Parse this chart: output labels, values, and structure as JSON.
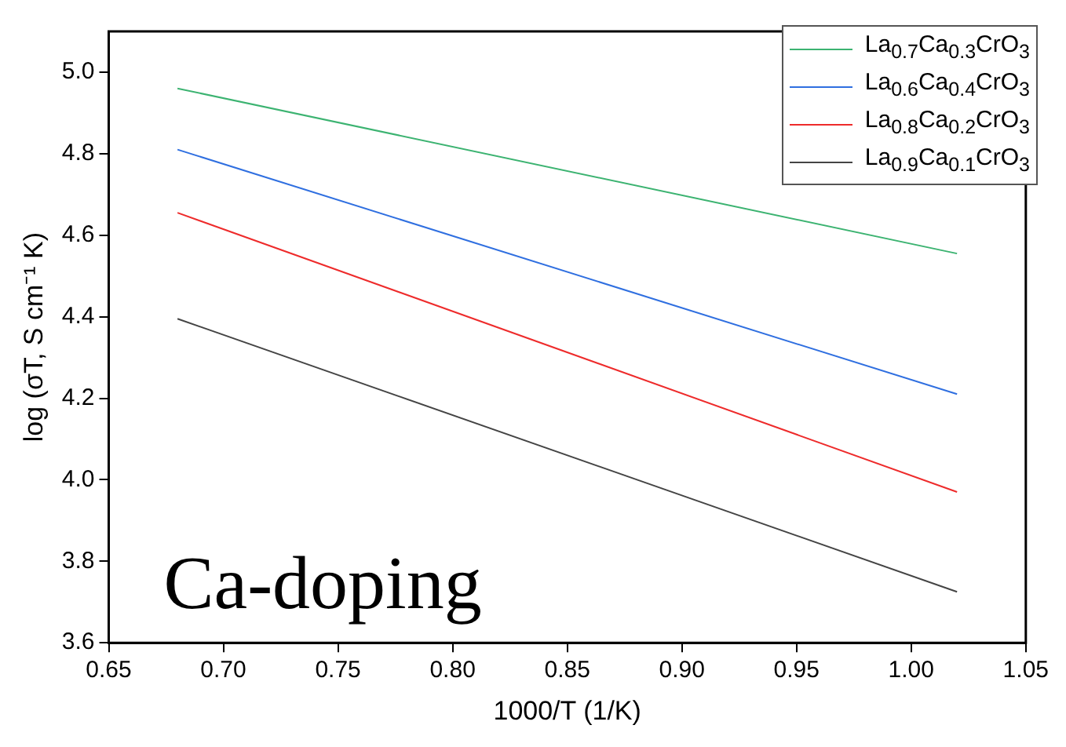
{
  "chart_data": {
    "type": "line",
    "xlabel": "1000/T (1/K)",
    "ylabel": "log (σT, S cm⁻¹ K)",
    "xlim": [
      0.65,
      1.05
    ],
    "xticks": [
      {
        "value": 0.65,
        "label": "0.65"
      },
      {
        "value": 0.7,
        "label": "0.70"
      },
      {
        "value": 0.75,
        "label": "0.75"
      },
      {
        "value": 0.8,
        "label": "0.80"
      },
      {
        "value": 0.85,
        "label": "0.85"
      },
      {
        "value": 0.9,
        "label": "0.90"
      },
      {
        "value": 0.95,
        "label": "0.95"
      },
      {
        "value": 1.0,
        "label": "1.00"
      },
      {
        "value": 1.05,
        "label": "1.05"
      }
    ],
    "ylim": [
      3.6,
      5.1
    ],
    "yticks": [
      {
        "value": 3.6,
        "label": "3.6"
      },
      {
        "value": 3.8,
        "label": "3.8"
      },
      {
        "value": 4.0,
        "label": "4.0"
      },
      {
        "value": 4.2,
        "label": "4.2"
      },
      {
        "value": 4.4,
        "label": "4.4"
      },
      {
        "value": 4.6,
        "label": "4.6"
      },
      {
        "value": 4.8,
        "label": "4.8"
      },
      {
        "value": 5.0,
        "label": "5.0"
      }
    ],
    "x": [
      0.68,
      1.02
    ],
    "series": [
      {
        "name": "La$_{0.7}$Ca$_{0.3}$CrO$_{3}$",
        "color": "#3cb371",
        "values": [
          4.96,
          4.555
        ]
      },
      {
        "name": "La$_{0.6}$Ca$_{0.4}$CrO$_{3}$",
        "color": "#2f6fe0",
        "values": [
          4.81,
          4.21
        ]
      },
      {
        "name": "La$_{0.8}$Ca$_{0.2}$CrO$_{3}$",
        "color": "#ee2b2b",
        "values": [
          4.655,
          3.97
        ]
      },
      {
        "name": "La$_{0.9}$Ca$_{0.1}$CrO$_{3}$",
        "color": "#444444",
        "values": [
          4.395,
          3.725
        ]
      }
    ],
    "annotations": [
      "Ca-doping"
    ],
    "legend": "top right",
    "grid": false,
    "marker": "none",
    "line_style": "solid"
  }
}
